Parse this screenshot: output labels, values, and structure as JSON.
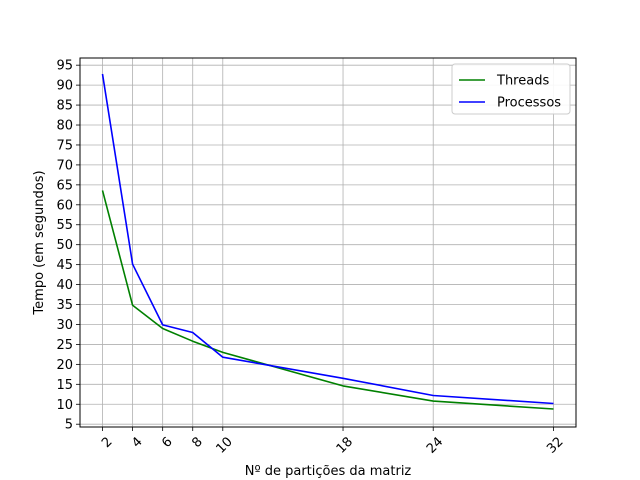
{
  "chart_data": {
    "type": "line",
    "xlabel": "Nº de partições da matriz",
    "ylabel": "Tempo (em segundos)",
    "x": [
      2,
      4,
      6,
      8,
      10,
      18,
      24,
      32
    ],
    "xticks": [
      2,
      4,
      6,
      8,
      10,
      18,
      24,
      32
    ],
    "xlim": [
      0.5,
      33.5
    ],
    "yticks": [
      5,
      10,
      15,
      20,
      25,
      30,
      35,
      40,
      45,
      50,
      55,
      60,
      65,
      70,
      75,
      80,
      85,
      90,
      95
    ],
    "ylim": [
      4.3,
      96.8
    ],
    "grid": true,
    "legend_position": "top-right",
    "series": [
      {
        "name": "Threads",
        "color": "#008000",
        "values": [
          63.6,
          34.8,
          29.0,
          25.8,
          23.0,
          14.6,
          10.8,
          8.8
        ]
      },
      {
        "name": "Processos",
        "color": "#0000ff",
        "values": [
          92.8,
          45.1,
          29.9,
          28.0,
          21.8,
          16.5,
          12.2,
          10.2
        ]
      }
    ]
  }
}
